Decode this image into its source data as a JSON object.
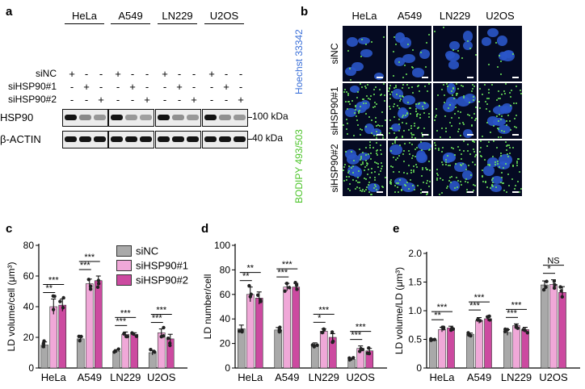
{
  "panel_a": {
    "label": "a",
    "cell_lines": [
      "HeLa",
      "A549",
      "LN229",
      "U2OS"
    ],
    "treatments": [
      {
        "name": "siNC",
        "signs": [
          "+",
          "-",
          "-"
        ]
      },
      {
        "name": "siHSP90#1",
        "signs": [
          "-",
          "+",
          "-"
        ]
      },
      {
        "name": "siHSP90#2",
        "signs": [
          "-",
          "-",
          "+"
        ]
      }
    ],
    "blots": [
      {
        "name": "HSP90",
        "marker": "100 kDa",
        "intensity": [
          [
            1.0,
            0.45,
            0.35
          ],
          [
            1.0,
            0.35,
            0.3
          ],
          [
            1.0,
            0.4,
            0.35
          ],
          [
            1.0,
            0.4,
            0.35
          ]
        ]
      },
      {
        "name": "β-ACTIN",
        "marker": "40 kDa",
        "intensity": [
          [
            1,
            1,
            1
          ],
          [
            1,
            1,
            1
          ],
          [
            1,
            1,
            1
          ],
          [
            1,
            1,
            1
          ]
        ]
      }
    ]
  },
  "panel_b": {
    "label": "b",
    "columns": [
      "HeLa",
      "A549",
      "LN229",
      "U2OS"
    ],
    "rows": [
      "siNC",
      "siHSP90#1",
      "siHSP90#2"
    ],
    "stain_blue": "Hoechst 33342",
    "stain_green": "BODIPY 493/503",
    "color_blue": "#3a6fd8",
    "color_green": "#4cc42a",
    "ld_density": [
      [
        0.05,
        0.5,
        0.6
      ],
      [
        0.1,
        0.6,
        0.5
      ],
      [
        0.05,
        0.4,
        0.45
      ],
      [
        0.05,
        0.35,
        0.45
      ]
    ]
  },
  "legend": {
    "items": [
      {
        "name": "siNC",
        "color": "#a9a9a9"
      },
      {
        "name": "siHSP90#1",
        "color": "#f0a8d8"
      },
      {
        "name": "siHSP90#2",
        "color": "#cc4aa0"
      }
    ]
  },
  "chart_data": [
    {
      "label": "c",
      "type": "bar",
      "ylabel": "LD volume/cell (μm³)",
      "ylim": [
        0,
        80
      ],
      "yticks": [
        "0",
        "20",
        "40",
        "60",
        "80"
      ],
      "categories": [
        "HeLa",
        "A549",
        "LN229",
        "U2OS"
      ],
      "series": [
        {
          "name": "siNC",
          "values": [
            15,
            19,
            11,
            10
          ]
        },
        {
          "name": "siHSP90#1",
          "values": [
            40,
            55,
            22,
            23
          ]
        },
        {
          "name": "siHSP90#2",
          "values": [
            41,
            57,
            22,
            19
          ]
        }
      ],
      "errors": [
        [
          2,
          1.5,
          1,
          1.5
        ],
        [
          5,
          3,
          1.5,
          2.5
        ],
        [
          4,
          3,
          1,
          3
        ]
      ],
      "significance": [
        {
          "group": 0,
          "pairs": [
            "***",
            "**"
          ]
        },
        {
          "group": 1,
          "pairs": [
            "***",
            "***"
          ]
        },
        {
          "group": 2,
          "pairs": [
            "***",
            "***"
          ]
        },
        {
          "group": 3,
          "pairs": [
            "***",
            "***"
          ]
        }
      ]
    },
    {
      "label": "d",
      "type": "bar",
      "ylabel": "LD number/cell",
      "ylim": [
        0,
        100
      ],
      "yticks": [
        "0",
        "20",
        "40",
        "60",
        "80",
        "100"
      ],
      "categories": [
        "HeLa",
        "A549",
        "LN229",
        "U2OS"
      ],
      "series": [
        {
          "name": "siNC",
          "values": [
            32,
            31,
            19,
            7
          ]
        },
        {
          "name": "siHSP90#1",
          "values": [
            60,
            66,
            30,
            16
          ]
        },
        {
          "name": "siHSP90#2",
          "values": [
            57,
            66,
            25,
            14
          ]
        }
      ],
      "errors": [
        [
          3,
          2,
          1.5,
          1
        ],
        [
          6,
          3,
          2,
          2
        ],
        [
          5,
          3,
          3,
          2
        ]
      ],
      "significance": [
        {
          "group": 0,
          "pairs": [
            "**",
            "**"
          ]
        },
        {
          "group": 1,
          "pairs": [
            "***",
            "***"
          ]
        },
        {
          "group": 2,
          "pairs": [
            "***",
            "*"
          ]
        },
        {
          "group": 3,
          "pairs": [
            "***",
            "***"
          ]
        }
      ]
    },
    {
      "label": "e",
      "type": "bar",
      "ylabel": "LD volume/LD (μm³)",
      "ylim": [
        0,
        2.0
      ],
      "yticks": [
        "0",
        "0.5",
        "1.0",
        "1.5",
        "2.0"
      ],
      "categories": [
        "HeLa",
        "A549",
        "LN229",
        "U2OS"
      ],
      "series": [
        {
          "name": "siNC",
          "values": [
            0.49,
            0.59,
            0.62,
            1.45
          ]
        },
        {
          "name": "siHSP90#1",
          "values": [
            0.67,
            0.83,
            0.74,
            1.46
          ]
        },
        {
          "name": "siHSP90#2",
          "values": [
            0.7,
            0.86,
            0.67,
            1.32
          ]
        }
      ],
      "errors": [
        [
          0.02,
          0.02,
          0.05,
          0.07
        ],
        [
          0.04,
          0.05,
          0.03,
          0.08
        ],
        [
          0.03,
          0.04,
          0.04,
          0.1
        ]
      ],
      "significance": [
        {
          "group": 0,
          "pairs": [
            "***",
            "**"
          ]
        },
        {
          "group": 1,
          "pairs": [
            "***",
            "***"
          ]
        },
        {
          "group": 2,
          "pairs": [
            "***",
            "***"
          ]
        },
        {
          "group": 3,
          "pairs": [
            "NS",
            "*"
          ]
        }
      ]
    }
  ]
}
